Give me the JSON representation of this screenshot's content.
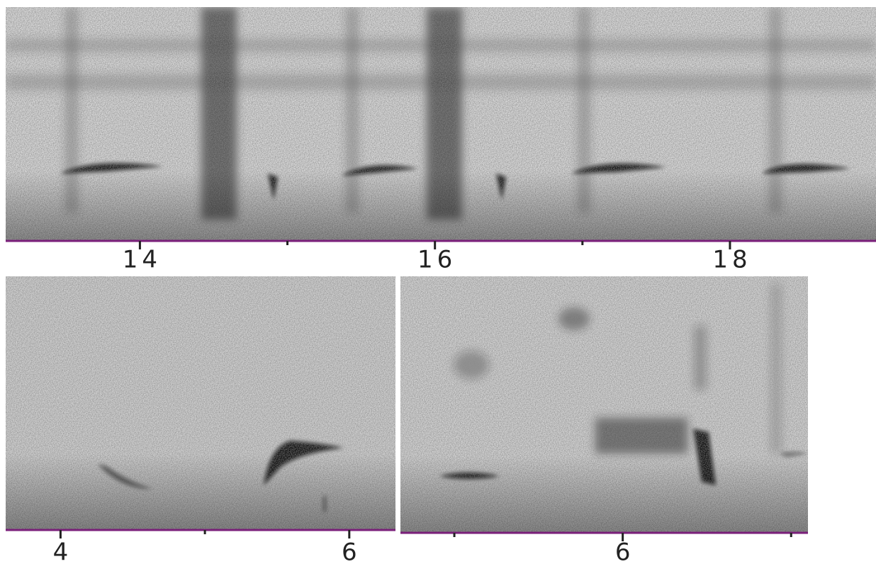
{
  "chart_data": [
    {
      "type": "spectrogram",
      "xlim": [
        13.09,
        18.99
      ],
      "xticks": [
        14,
        16,
        18
      ],
      "xminorticks": [
        15,
        17
      ]
    },
    {
      "type": "spectrogram",
      "xlim": [
        3.62,
        6.32
      ],
      "xticks": [
        4,
        6
      ],
      "xminorticks": [
        5
      ]
    },
    {
      "type": "spectrogram",
      "xlim": [
        4.68,
        7.1
      ],
      "xticks": [
        6
      ],
      "xminorticks": [
        5,
        7
      ]
    }
  ]
}
